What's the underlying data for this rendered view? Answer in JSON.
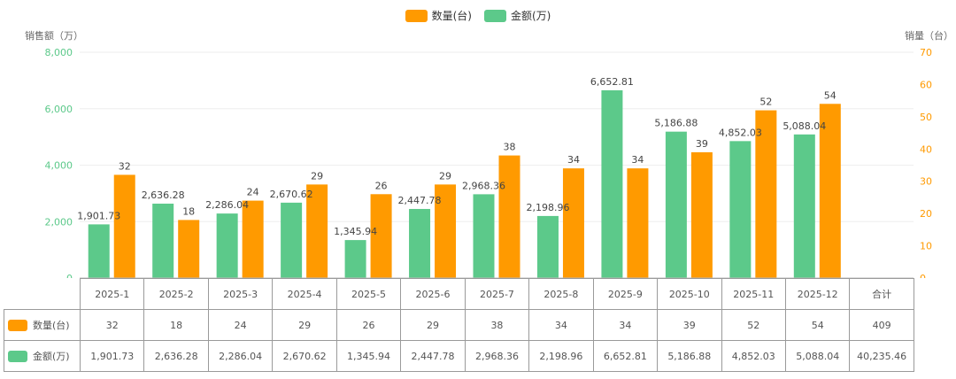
{
  "legend": {
    "qty_label": "数量(台)",
    "amount_label": "金额(万)"
  },
  "colors": {
    "qty": "#FF9A00",
    "amount": "#5CC98A",
    "qty_axis": "#FF9A00",
    "amount_axis": "#5CC98A"
  },
  "chart_data": {
    "type": "bar",
    "categories": [
      "2025-1",
      "2025-2",
      "2025-3",
      "2025-4",
      "2025-5",
      "2025-6",
      "2025-7",
      "2025-8",
      "2025-9",
      "2025-10",
      "2025-11",
      "2025-12"
    ],
    "series": [
      {
        "name": "金额(万)",
        "axis": "left",
        "values": [
          1901.73,
          2636.28,
          2286.04,
          2670.62,
          1345.94,
          2447.78,
          2968.36,
          2198.96,
          6652.81,
          5186.88,
          4852.03,
          5088.04
        ],
        "labels": [
          "1,901.73",
          "2,636.28",
          "2,286.04",
          "2,670.62",
          "1,345.94",
          "2,447.78",
          "2,968.36",
          "2,198.96",
          "6,652.81",
          "5,186.88",
          "4,852.03",
          "5,088.04"
        ]
      },
      {
        "name": "数量(台)",
        "axis": "right",
        "values": [
          32,
          18,
          24,
          29,
          26,
          29,
          38,
          34,
          34,
          39,
          52,
          54
        ],
        "labels": [
          "32",
          "18",
          "24",
          "29",
          "26",
          "29",
          "38",
          "34",
          "34",
          "39",
          "52",
          "54"
        ]
      }
    ],
    "left_axis": {
      "title": "销售额（万）",
      "range": [
        0,
        8000
      ],
      "ticks": [
        "0",
        "2,000",
        "4,000",
        "6,000",
        "8,000"
      ],
      "tick_values": [
        0,
        2000,
        4000,
        6000,
        8000
      ]
    },
    "right_axis": {
      "title": "销量（台）",
      "range": [
        0,
        70
      ],
      "ticks": [
        "0",
        "10",
        "20",
        "30",
        "40",
        "50",
        "60",
        "70"
      ],
      "tick_values": [
        0,
        10,
        20,
        30,
        40,
        50,
        60,
        70
      ]
    }
  },
  "table": {
    "total_header": "合计",
    "rows": [
      {
        "label": "数量(台)",
        "values": [
          "32",
          "18",
          "24",
          "29",
          "26",
          "29",
          "38",
          "34",
          "34",
          "39",
          "52",
          "54"
        ],
        "total": "409"
      },
      {
        "label": "金额(万)",
        "values": [
          "1,901.73",
          "2,636.28",
          "2,286.04",
          "2,670.62",
          "1,345.94",
          "2,447.78",
          "2,968.36",
          "2,198.96",
          "6,652.81",
          "5,186.88",
          "4,852.03",
          "5,088.04"
        ],
        "total": "40,235.46"
      }
    ]
  }
}
